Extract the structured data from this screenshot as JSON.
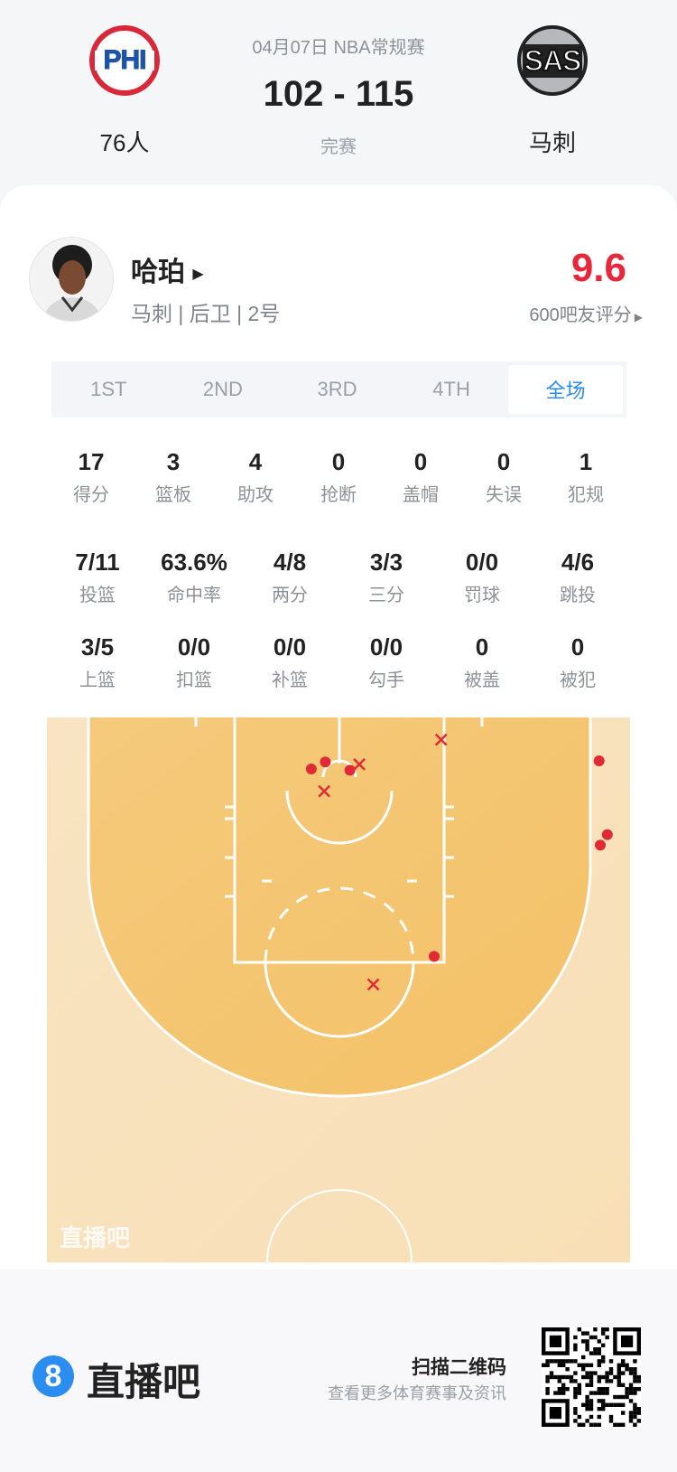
{
  "match": {
    "date_league": "04月07日 NBA常规赛",
    "score": "102 - 115",
    "status": "完赛",
    "home": {
      "abbr": "PHI",
      "name": "76人"
    },
    "away": {
      "abbr": "SAS",
      "name": "马刺"
    }
  },
  "player": {
    "name": "哈珀",
    "info": "马刺 | 后卫 | 2号",
    "rating": "9.6",
    "rating_label": "600吧友评分",
    "rating_color": "#e8283a"
  },
  "tabs": [
    {
      "label": "1ST"
    },
    {
      "label": "2ND"
    },
    {
      "label": "3RD"
    },
    {
      "label": "4TH"
    },
    {
      "label": "全场",
      "active": true
    }
  ],
  "stats_row1": [
    {
      "v": "17",
      "l": "得分"
    },
    {
      "v": "3",
      "l": "篮板"
    },
    {
      "v": "4",
      "l": "助攻"
    },
    {
      "v": "0",
      "l": "抢断"
    },
    {
      "v": "0",
      "l": "盖帽"
    },
    {
      "v": "0",
      "l": "失误"
    },
    {
      "v": "1",
      "l": "犯规"
    }
  ],
  "stats_row2": [
    {
      "v": "7/11",
      "l": "投篮"
    },
    {
      "v": "63.6%",
      "l": "命中率"
    },
    {
      "v": "4/8",
      "l": "两分"
    },
    {
      "v": "3/3",
      "l": "三分"
    },
    {
      "v": "0/0",
      "l": "罚球"
    },
    {
      "v": "4/6",
      "l": "跳投"
    }
  ],
  "stats_row3": [
    {
      "v": "3/5",
      "l": "上篮"
    },
    {
      "v": "0/0",
      "l": "扣篮"
    },
    {
      "v": "0/0",
      "l": "补篮"
    },
    {
      "v": "0/0",
      "l": "勾手"
    },
    {
      "v": "0",
      "l": "被盖"
    },
    {
      "v": "0",
      "l": "被犯"
    }
  ],
  "chart_data": {
    "type": "scatter",
    "units": "feet from basket center (x) and baseline (y)",
    "shots": [
      {
        "x": -2.4,
        "y": 4.4,
        "made": true
      },
      {
        "x": -1.2,
        "y": 3.8,
        "made": true
      },
      {
        "x": 0.9,
        "y": 4.5,
        "made": true
      },
      {
        "x": 22.2,
        "y": 3.7,
        "made": true
      },
      {
        "x": 22.9,
        "y": 10.0,
        "made": true
      },
      {
        "x": 22.3,
        "y": 10.9,
        "made": true
      },
      {
        "x": 8.1,
        "y": 20.4,
        "made": true
      },
      {
        "x": 8.7,
        "y": 1.9,
        "made": false
      },
      {
        "x": 1.7,
        "y": 4.0,
        "made": false
      },
      {
        "x": -1.3,
        "y": 6.3,
        "made": false
      },
      {
        "x": 2.9,
        "y": 22.8,
        "made": false
      }
    ],
    "made_color": "#e02a35",
    "watermark": "直播吧"
  },
  "footer": {
    "brand": "直播吧",
    "logo_digit": "8",
    "scan_title": "扫描二维码",
    "scan_sub": "查看更多体育赛事及资讯",
    "brand_color": "#2b8df0"
  }
}
